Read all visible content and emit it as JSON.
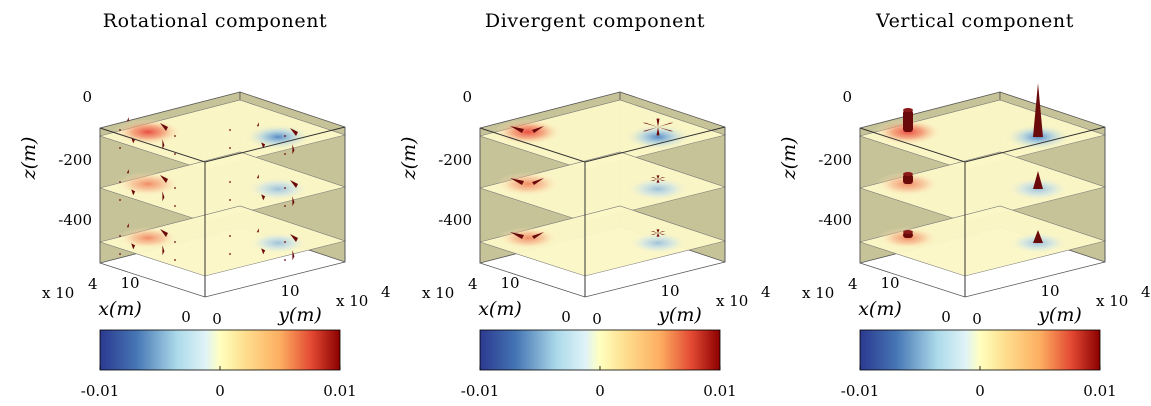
{
  "figure": {
    "exponent_label": "x 10",
    "exponent_power": "4"
  },
  "chart_data": [
    {
      "type": "3d-slice-volume",
      "title": "Rotational component",
      "variant": "rotational",
      "z_label": "z(m)",
      "x_label": "x(m)",
      "y_label": "y(m)",
      "z_ticks": [
        "0",
        "-200",
        "-400"
      ],
      "z_tick_values": [
        0,
        -200,
        -400
      ],
      "zlim": [
        -500,
        0
      ],
      "x_ticks": [
        "10",
        "0"
      ],
      "y_ticks": [
        "0",
        "10"
      ],
      "slice_depths": [
        -100,
        -280,
        -460
      ],
      "colorbar": {
        "min": -0.01,
        "max": 0.01,
        "ticks": [
          "-0.01",
          "0",
          "0.01"
        ],
        "colormap": "RdYlBu_r"
      },
      "anomalies": [
        {
          "sign": "positive",
          "label": "red-anomaly"
        },
        {
          "sign": "negative",
          "label": "blue-anomaly"
        }
      ]
    },
    {
      "type": "3d-slice-volume",
      "title": "Divergent component",
      "variant": "divergent",
      "z_label": "z(m)",
      "x_label": "x(m)",
      "y_label": "y(m)",
      "z_ticks": [
        "0",
        "-200",
        "-400"
      ],
      "z_tick_values": [
        0,
        -200,
        -400
      ],
      "zlim": [
        -500,
        0
      ],
      "x_ticks": [
        "10",
        "0"
      ],
      "y_ticks": [
        "0",
        "10"
      ],
      "slice_depths": [
        -100,
        -280,
        -460
      ],
      "colorbar": {
        "min": -0.01,
        "max": 0.01,
        "ticks": [
          "-0.01",
          "0",
          "0.01"
        ],
        "colormap": "RdYlBu_r"
      },
      "anomalies": [
        {
          "sign": "positive",
          "label": "red-anomaly"
        },
        {
          "sign": "negative",
          "label": "blue-anomaly"
        }
      ]
    },
    {
      "type": "3d-slice-volume",
      "title": "Vertical component",
      "variant": "vertical",
      "z_label": "z(m)",
      "x_label": "x(m)",
      "y_label": "y(m)",
      "z_ticks": [
        "0",
        "-200",
        "-400"
      ],
      "z_tick_values": [
        0,
        -200,
        -400
      ],
      "zlim": [
        -500,
        0
      ],
      "x_ticks": [
        "10",
        "0"
      ],
      "y_ticks": [
        "0",
        "10"
      ],
      "slice_depths": [
        -100,
        -280,
        -460
      ],
      "colorbar": {
        "min": -0.01,
        "max": 0.01,
        "ticks": [
          "-0.01",
          "0",
          "0.01"
        ],
        "colormap": "RdYlBu_r"
      },
      "anomalies": [
        {
          "sign": "positive",
          "label": "red-anomaly"
        },
        {
          "sign": "negative",
          "label": "blue-anomaly"
        }
      ]
    }
  ],
  "colors": {
    "slice": "#fcf7c6",
    "wall": "#c7c398",
    "vector": "#6b0a0a",
    "red": "#d73027",
    "blue": "#4575b4"
  }
}
